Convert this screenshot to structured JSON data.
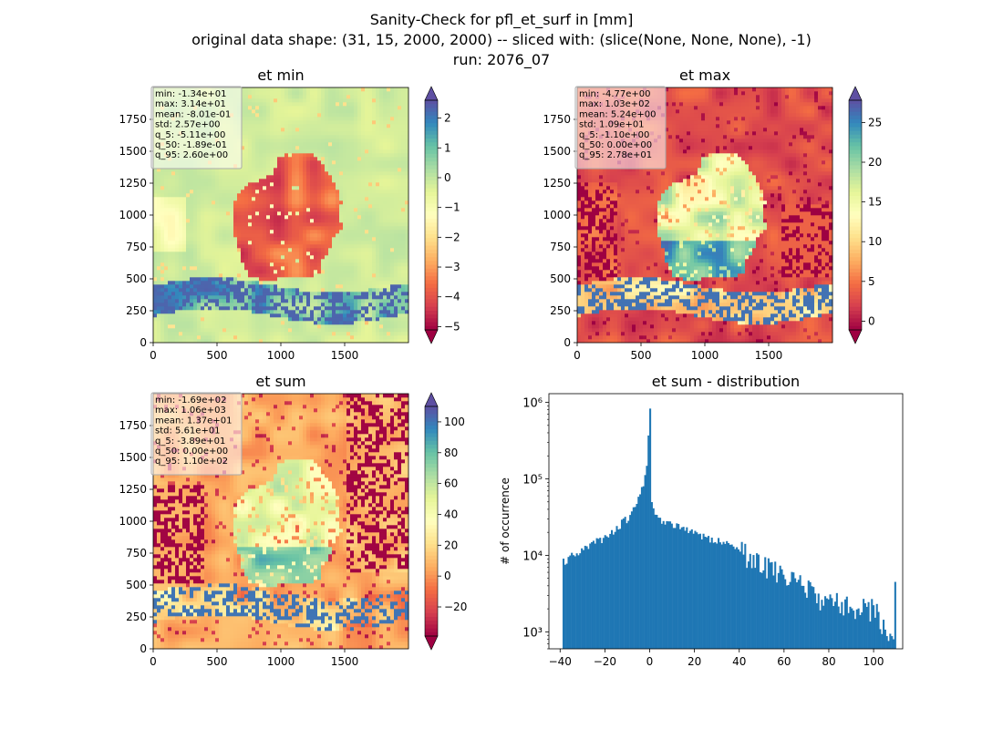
{
  "figure": {
    "title_lines": [
      "Sanity-Check for pfl_et_surf in [mm]",
      "original data shape: (31, 15, 2000, 2000) -- sliced with: (slice(None, None, None), -1)",
      "run: 2076_07"
    ]
  },
  "chart_data": [
    {
      "type": "heatmap",
      "title": "et min",
      "xlim": [
        0,
        2000
      ],
      "ylim": [
        0,
        2000
      ],
      "xticks": [
        "0",
        "500",
        "1000",
        "1500"
      ],
      "yticks": [
        "0",
        "250",
        "500",
        "750",
        "1000",
        "1250",
        "1500",
        "1750"
      ],
      "colormap": "Spectral",
      "color_range": [
        -5.11,
        2.6
      ],
      "colorbar_ticks": [
        "2",
        "1",
        "0",
        "−1",
        "−2",
        "−3",
        "−4",
        "−5"
      ],
      "colorbar_extend": "both",
      "stats": [
        "min: -1.34e+01",
        "max: 3.14e+01",
        "mean: -8.01e-01",
        "std: 2.57e+00",
        "q_5: -5.11e+00",
        "q_50: -1.89e-01",
        "q_95: 2.60e+00"
      ]
    },
    {
      "type": "heatmap",
      "title": "et max",
      "xlim": [
        0,
        2000
      ],
      "ylim": [
        0,
        2000
      ],
      "xticks": [
        "0",
        "500",
        "1000",
        "1500"
      ],
      "yticks": [
        "0",
        "250",
        "500",
        "750",
        "1000",
        "1250",
        "1500",
        "1750"
      ],
      "colormap": "Spectral",
      "color_range": [
        -1.1,
        27.8
      ],
      "colorbar_ticks": [
        "25",
        "20",
        "15",
        "10",
        "5",
        "0"
      ],
      "colorbar_extend": "both",
      "stats": [
        "min: -4.77e+00",
        "max: 1.03e+02",
        "mean: 5.24e+00",
        "std: 1.09e+01",
        "q_5: -1.10e+00",
        "q_50: 0.00e+00",
        "q_95: 2.78e+01"
      ]
    },
    {
      "type": "heatmap",
      "title": "et sum",
      "xlim": [
        0,
        2000
      ],
      "ylim": [
        0,
        2000
      ],
      "xticks": [
        "0",
        "500",
        "1000",
        "1500"
      ],
      "yticks": [
        "0",
        "250",
        "500",
        "750",
        "1000",
        "1250",
        "1500",
        "1750"
      ],
      "colormap": "Spectral",
      "color_range": [
        -38.9,
        110
      ],
      "colorbar_ticks": [
        "100",
        "80",
        "60",
        "40",
        "20",
        "0",
        "−20"
      ],
      "colorbar_extend": "both",
      "stats": [
        "min: -1.69e+02",
        "max: 1.06e+03",
        "mean: 1.37e+01",
        "std: 5.61e+01",
        "q_5: -3.89e+01",
        "q_50: 0.00e+00",
        "q_95: 1.10e+02"
      ]
    },
    {
      "type": "bar",
      "title": "et sum - distribution",
      "ylabel": "# of occurrence",
      "yscale": "log",
      "xlim": [
        -45,
        113
      ],
      "ylim": [
        600,
        1300000
      ],
      "xticks": [
        "−40",
        "−20",
        "0",
        "20",
        "40",
        "60",
        "80",
        "100"
      ],
      "yticks": [
        "10³",
        "10⁴",
        "10⁵",
        "10⁶"
      ],
      "bar_color": "#1f77b4",
      "bins": [
        -38.9,
        110
      ],
      "bin_count": 200,
      "approx_counts": [
        {
          "x": -38.9,
          "y": 8000
        },
        {
          "x": -30,
          "y": 12000
        },
        {
          "x": -20,
          "y": 17000
        },
        {
          "x": -10,
          "y": 30000
        },
        {
          "x": -5,
          "y": 55000
        },
        {
          "x": -1.5,
          "y": 120000
        },
        {
          "x": 0,
          "y": 830000
        },
        {
          "x": 1,
          "y": 40000
        },
        {
          "x": 5,
          "y": 27000
        },
        {
          "x": 20,
          "y": 20000
        },
        {
          "x": 40,
          "y": 12000
        },
        {
          "x": 60,
          "y": 5500
        },
        {
          "x": 80,
          "y": 2500
        },
        {
          "x": 100,
          "y": 2000
        },
        {
          "x": 109,
          "y": 800
        },
        {
          "x": 110,
          "y": 4500
        }
      ]
    }
  ]
}
